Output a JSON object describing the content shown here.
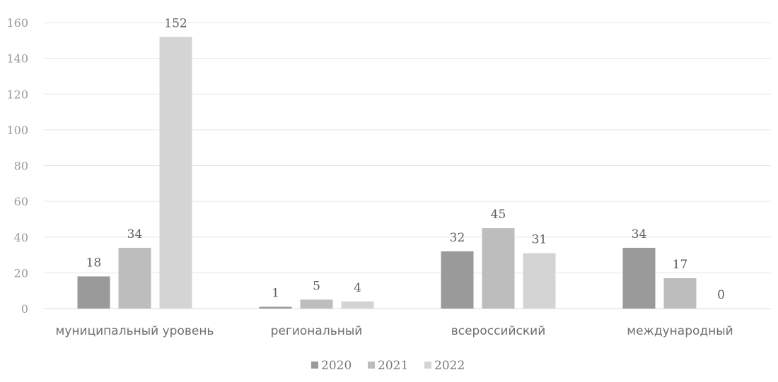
{
  "chart_data": {
    "type": "bar",
    "title": "",
    "xlabel": "",
    "ylabel": "",
    "categories": [
      "муниципальный уровень",
      "региональный",
      "всероссийский",
      "международный"
    ],
    "series": [
      {
        "name": "2020",
        "color": "#9a9a9a",
        "values": [
          18,
          1,
          32,
          34
        ]
      },
      {
        "name": "2021",
        "color": "#bdbdbd",
        "values": [
          34,
          5,
          45,
          17
        ]
      },
      {
        "name": "2022",
        "color": "#d4d4d4",
        "values": [
          152,
          4,
          31,
          0
        ]
      }
    ],
    "ylim": [
      0,
      160
    ],
    "yticks": [
      0,
      20,
      40,
      60,
      80,
      100,
      120,
      140,
      160
    ],
    "grid": true,
    "legend_position": "bottom",
    "data_labels": true
  }
}
